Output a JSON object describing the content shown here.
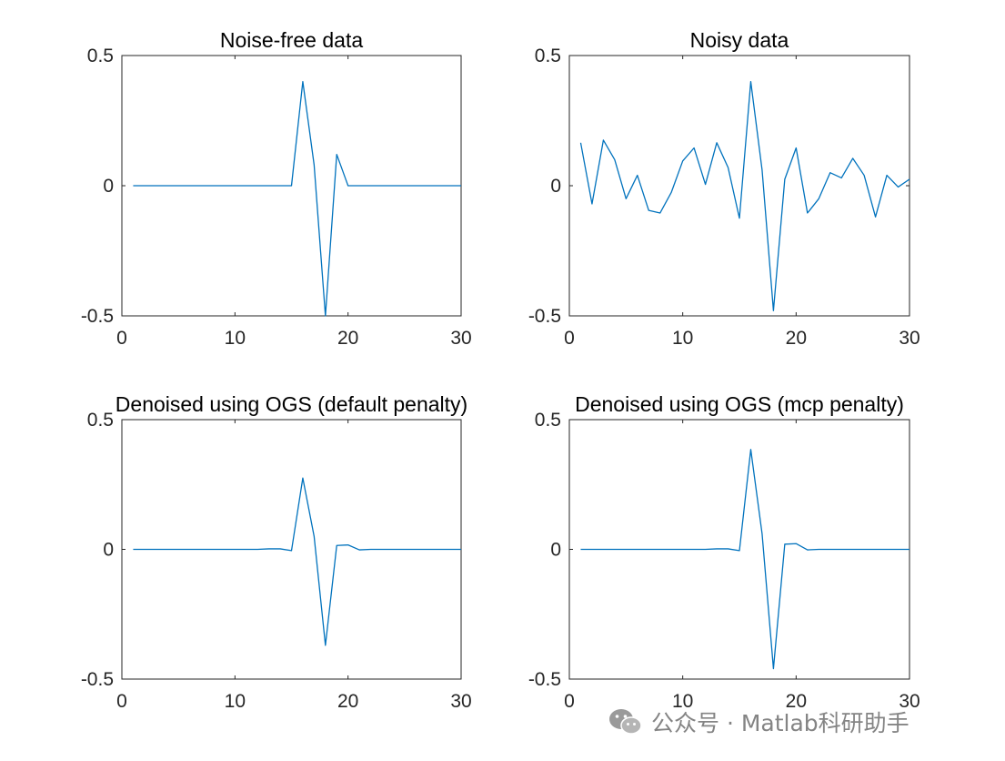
{
  "colors": {
    "line": "#0072BD",
    "axes": "#262626",
    "background": "#ffffff"
  },
  "chart_data": [
    {
      "type": "line",
      "title": "Noise-free data",
      "xlabel": "",
      "ylabel": "",
      "xlim": [
        0,
        30
      ],
      "ylim": [
        -0.5,
        0.5
      ],
      "xticks": [
        0,
        10,
        20,
        30
      ],
      "xtick_labels": [
        "0",
        "10",
        "20",
        "30"
      ],
      "yticks": [
        -0.5,
        0,
        0.5
      ],
      "ytick_labels": [
        "-0.5",
        "0",
        "0.5"
      ],
      "series": [
        {
          "name": "Noise-free data",
          "x": [
            1,
            2,
            3,
            4,
            5,
            6,
            7,
            8,
            9,
            10,
            11,
            12,
            13,
            14,
            15,
            16,
            17,
            18,
            19,
            20,
            21,
            22,
            23,
            24,
            25,
            26,
            27,
            28,
            29,
            30
          ],
          "y": [
            0,
            0,
            0,
            0,
            0,
            0,
            0,
            0,
            0,
            0,
            0,
            0,
            0,
            0,
            0,
            0.4,
            0.08,
            -0.5,
            0.12,
            0,
            0,
            0,
            0,
            0,
            0,
            0,
            0,
            0,
            0,
            0
          ]
        }
      ]
    },
    {
      "type": "line",
      "title": "Noisy data",
      "xlabel": "",
      "ylabel": "",
      "xlim": [
        0,
        30
      ],
      "ylim": [
        -0.5,
        0.5
      ],
      "xticks": [
        0,
        10,
        20,
        30
      ],
      "xtick_labels": [
        "0",
        "10",
        "20",
        "30"
      ],
      "yticks": [
        -0.5,
        0,
        0.5
      ],
      "ytick_labels": [
        "-0.5",
        "0",
        "0.5"
      ],
      "series": [
        {
          "name": "Noisy data",
          "x": [
            1,
            2,
            3,
            4,
            5,
            6,
            7,
            8,
            9,
            10,
            11,
            12,
            13,
            14,
            15,
            16,
            17,
            18,
            19,
            20,
            21,
            22,
            23,
            24,
            25,
            26,
            27,
            28,
            29,
            30
          ],
          "y": [
            0.165,
            -0.07,
            0.175,
            0.1,
            -0.05,
            0.04,
            -0.095,
            -0.105,
            -0.025,
            0.095,
            0.145,
            0.005,
            0.165,
            0.07,
            -0.125,
            0.4,
            0.06,
            -0.48,
            0.025,
            0.145,
            -0.105,
            -0.05,
            0.05,
            0.03,
            0.105,
            0.04,
            -0.12,
            0.04,
            -0.005,
            0.025
          ]
        }
      ]
    },
    {
      "type": "line",
      "title": "Denoised using OGS (default penalty)",
      "xlabel": "",
      "ylabel": "",
      "xlim": [
        0,
        30
      ],
      "ylim": [
        -0.5,
        0.5
      ],
      "xticks": [
        0,
        10,
        20,
        30
      ],
      "xtick_labels": [
        "0",
        "10",
        "20",
        "30"
      ],
      "yticks": [
        -0.5,
        0,
        0.5
      ],
      "ytick_labels": [
        "-0.5",
        "0",
        "0.5"
      ],
      "series": [
        {
          "name": "Denoised (default penalty)",
          "x": [
            1,
            2,
            3,
            4,
            5,
            6,
            7,
            8,
            9,
            10,
            11,
            12,
            13,
            14,
            15,
            16,
            17,
            18,
            19,
            20,
            21,
            22,
            23,
            24,
            25,
            26,
            27,
            28,
            29,
            30
          ],
          "y": [
            0,
            0,
            0,
            0,
            0,
            0,
            0,
            0,
            0,
            0,
            0,
            0,
            0.002,
            0.002,
            -0.005,
            0.275,
            0.05,
            -0.37,
            0.015,
            0.017,
            -0.002,
            0,
            0,
            0,
            0,
            0,
            0,
            0,
            0,
            0
          ]
        }
      ]
    },
    {
      "type": "line",
      "title": "Denoised using OGS (mcp penalty)",
      "xlabel": "",
      "ylabel": "",
      "xlim": [
        0,
        30
      ],
      "ylim": [
        -0.5,
        0.5
      ],
      "xticks": [
        0,
        10,
        20,
        30
      ],
      "xtick_labels": [
        "0",
        "10",
        "20",
        "30"
      ],
      "yticks": [
        -0.5,
        0,
        0.5
      ],
      "ytick_labels": [
        "-0.5",
        "0",
        "0.5"
      ],
      "series": [
        {
          "name": "Denoised (mcp penalty)",
          "x": [
            1,
            2,
            3,
            4,
            5,
            6,
            7,
            8,
            9,
            10,
            11,
            12,
            13,
            14,
            15,
            16,
            17,
            18,
            19,
            20,
            21,
            22,
            23,
            24,
            25,
            26,
            27,
            28,
            29,
            30
          ],
          "y": [
            0,
            0,
            0,
            0,
            0,
            0,
            0,
            0,
            0,
            0,
            0,
            0,
            0.002,
            0.002,
            -0.005,
            0.385,
            0.06,
            -0.46,
            0.02,
            0.022,
            -0.002,
            0,
            0,
            0,
            0,
            0,
            0,
            0,
            0,
            0
          ]
        }
      ]
    }
  ],
  "watermark": {
    "text": "公众号 · Matlab科研助手",
    "icon": "wechat-icon"
  }
}
